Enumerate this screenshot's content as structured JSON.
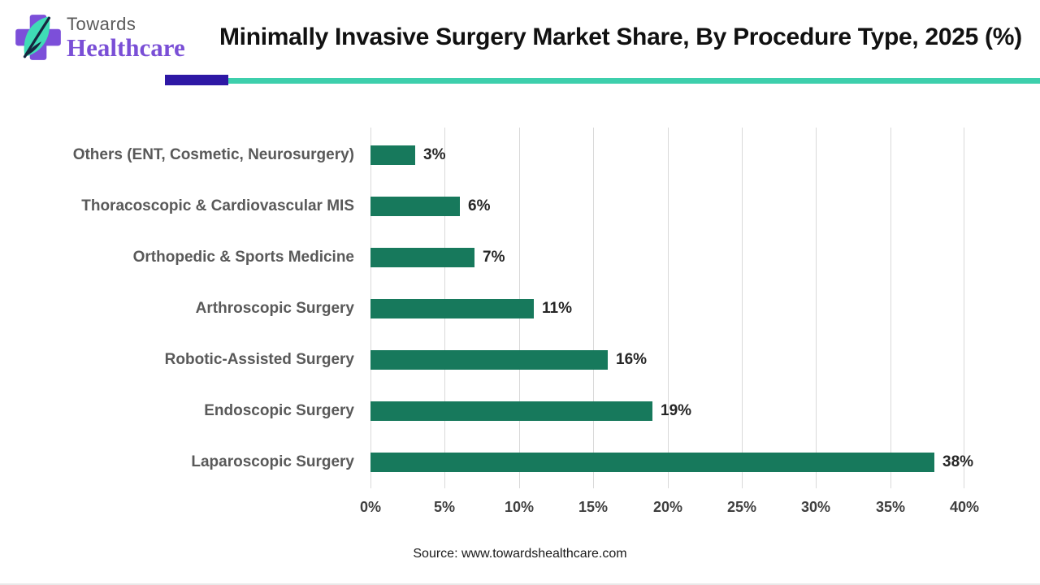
{
  "header": {
    "brand": {
      "towards": "Towards",
      "healthcare": "Healthcare"
    },
    "title": "Minimally Invasive Surgery Market Share, By Procedure Type, 2025 (%)"
  },
  "colors": {
    "bar": "#17795C",
    "grid": "#D9D9D9",
    "category_label": "#595959",
    "value_label": "#262626",
    "tick_label": "#3F3F3F",
    "title": "#111111",
    "divider_purple": "#2E18A5",
    "divider_teal": "#3DCFAC",
    "logo_purple": "#7C4FD9",
    "logo_leaf_teal": "#3FDCB6"
  },
  "chart_data": {
    "type": "bar",
    "orientation": "horizontal",
    "title": "Minimally Invasive Surgery Market Share, By Procedure Type, 2025 (%)",
    "categories": [
      "Others (ENT, Cosmetic, Neurosurgery)",
      "Thoracoscopic & Cardiovascular MIS",
      "Orthopedic & Sports Medicine",
      "Arthroscopic Surgery",
      "Robotic-Assisted Surgery",
      "Endoscopic Surgery",
      "Laparoscopic Surgery"
    ],
    "values": [
      3,
      6,
      7,
      11,
      16,
      19,
      38
    ],
    "value_labels": [
      "3%",
      "6%",
      "7%",
      "11%",
      "16%",
      "19%",
      "38%"
    ],
    "xlabel": "",
    "ylabel": "",
    "xlim": [
      0,
      40
    ],
    "x_tick_values": [
      0,
      5,
      10,
      15,
      20,
      25,
      30,
      35,
      40
    ],
    "x_tick_labels": [
      "0%",
      "5%",
      "10%",
      "15%",
      "20%",
      "25%",
      "30%",
      "35%",
      "40%"
    ],
    "grid": "vertical",
    "legend": "none"
  },
  "footer": {
    "source": "Source: www.towardshealthcare.com"
  }
}
